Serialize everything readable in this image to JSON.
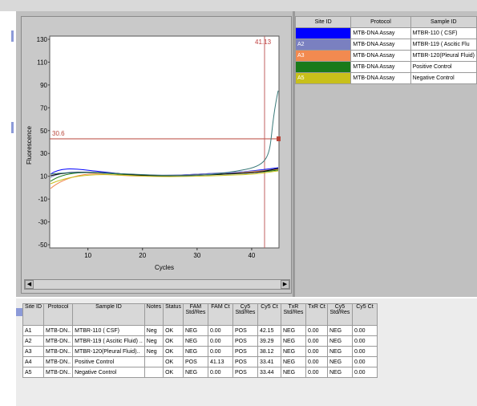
{
  "plot": {
    "y_ticks": [
      "130",
      "110",
      "90",
      "70",
      "50",
      "30",
      "10",
      "-10",
      "-30",
      "-50"
    ],
    "x_ticks": [
      "10",
      "20",
      "30",
      "40"
    ],
    "y_label": "Fluorescence",
    "x_label": "Cycles",
    "threshold_label": "30.6",
    "ct_label": "41.13",
    "colors": {
      "threshold": "#b8463a",
      "ct_line": "#c06060",
      "curve_rising": "#3a7a7a"
    }
  },
  "legend": {
    "headers": [
      "Site ID",
      "Protocol",
      "Sample ID"
    ],
    "rows": [
      {
        "site": "",
        "color": "#0000ff",
        "protocol": "MTB-DNA Assay",
        "sample": "MTBR-110 ( CSF)"
      },
      {
        "site": "A2",
        "color": "#7a80c0",
        "protocol": "MTB-DNA Assay",
        "sample": "MTBR-119 ( Ascitic Flu"
      },
      {
        "site": "A3",
        "color": "#f28a50",
        "protocol": "MTB-DNA Assay",
        "sample": "MTBR-120(Pleural Fluid)"
      },
      {
        "site": "",
        "color": "#1a7a1a",
        "protocol": "MTB-DNA Assay",
        "sample": "Positive Control"
      },
      {
        "site": "A5",
        "color": "#c8c01a",
        "protocol": "MTB-DNA Assay",
        "sample": "Negative Control"
      }
    ]
  },
  "results": {
    "headers": [
      "Site ID",
      "Protocol",
      "Sample ID",
      "Notes",
      "Status",
      "FAM Std/Res",
      "FAM Ct",
      "Cy5 Std/Res",
      "Cy5 Ct",
      "TxR Std/Res",
      "TxR Ct",
      "Cy5 Std/Res",
      "Cy5 Ct"
    ],
    "rows": [
      [
        "A1",
        "MTB-DN..",
        "MTBR-110 ( CSF)",
        "Neg",
        "OK",
        "NEG",
        "0.00",
        "POS",
        "42.15",
        "NEG",
        "0.00",
        "NEG",
        "0.00"
      ],
      [
        "A2",
        "MTB-DN..",
        "MTBR-119 ( Ascitic Fluid) ..",
        "Neg",
        "OK",
        "NEG",
        "0.00",
        "POS",
        "39.29",
        "NEG",
        "0.00",
        "NEG",
        "0.00"
      ],
      [
        "A3",
        "MTB-DN..",
        "MTBR-120(Pleural Fluid)..",
        "Neg",
        "OK",
        "NEG",
        "0.00",
        "POS",
        "38.12",
        "NEG",
        "0.00",
        "NEG",
        "0.00"
      ],
      [
        "A4",
        "MTB-DN..",
        "Positive Control",
        "",
        "OK",
        "POS",
        "41.13",
        "POS",
        "33.41",
        "NEG",
        "0.00",
        "NEG",
        "0.00"
      ],
      [
        "A5",
        "MTB-DN..",
        "Negative Control",
        "",
        "OK",
        "NEG",
        "0.00",
        "POS",
        "33.44",
        "NEG",
        "0.00",
        "NEG",
        "0.00"
      ]
    ]
  }
}
